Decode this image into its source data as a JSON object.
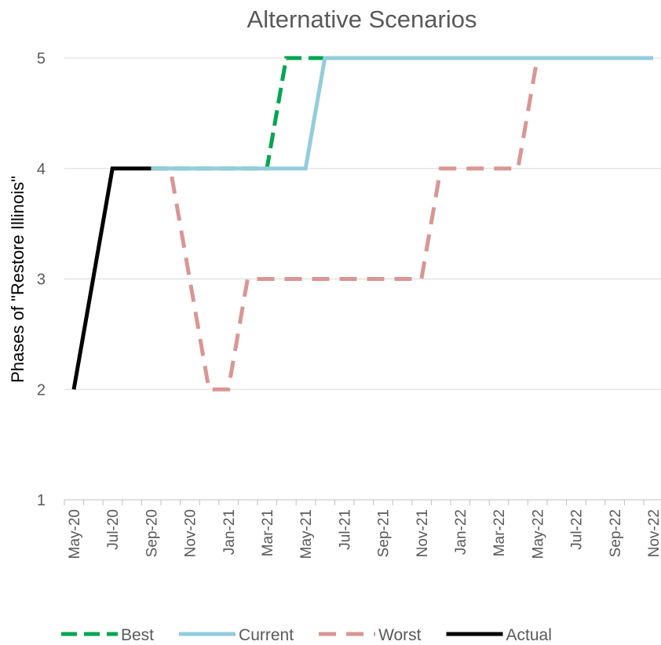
{
  "chart_data": {
    "type": "line",
    "title": "Alternative Scenarios",
    "xlabel": "",
    "ylabel": "Phases of \"Restore Illinois\"",
    "ylim": [
      1,
      5
    ],
    "yticks": [
      "1",
      "2",
      "3",
      "4",
      "5"
    ],
    "x_tick_labels": [
      "May-20",
      "Jul-20",
      "Sep-20",
      "Nov-20",
      "Jan-21",
      "Mar-21",
      "May-21",
      "Jul-21",
      "Sep-21",
      "Nov-21",
      "Jan-22",
      "Mar-22",
      "May-22",
      "Jul-22",
      "Sep-22",
      "Nov-22"
    ],
    "x_range": [
      "2020-05-01",
      "2022-11-01"
    ],
    "grid": true,
    "legend_position": "bottom",
    "series": [
      {
        "name": "Best",
        "color": "#00a650",
        "style": "dashed",
        "points": [
          [
            "2020-09-01",
            4
          ],
          [
            "2021-03-01",
            4
          ],
          [
            "2021-04-01",
            5
          ],
          [
            "2022-11-01",
            5
          ]
        ]
      },
      {
        "name": "Current",
        "color": "#92cddc",
        "style": "solid",
        "points": [
          [
            "2020-09-01",
            4
          ],
          [
            "2021-05-01",
            4
          ],
          [
            "2021-06-01",
            5
          ],
          [
            "2022-11-01",
            5
          ]
        ]
      },
      {
        "name": "Worst",
        "color": "#d99694",
        "style": "dashed",
        "points": [
          [
            "2020-09-01",
            4
          ],
          [
            "2020-10-01",
            4
          ],
          [
            "2020-12-01",
            2
          ],
          [
            "2021-01-01",
            2
          ],
          [
            "2021-02-01",
            3
          ],
          [
            "2021-11-01",
            3
          ],
          [
            "2021-12-01",
            4
          ],
          [
            "2022-04-01",
            4
          ],
          [
            "2022-05-01",
            5
          ],
          [
            "2022-11-01",
            5
          ]
        ]
      },
      {
        "name": "Actual",
        "color": "#000000",
        "style": "solid",
        "points": [
          [
            "2020-05-01",
            2
          ],
          [
            "2020-07-01",
            4
          ],
          [
            "2020-09-01",
            4
          ]
        ]
      }
    ]
  }
}
